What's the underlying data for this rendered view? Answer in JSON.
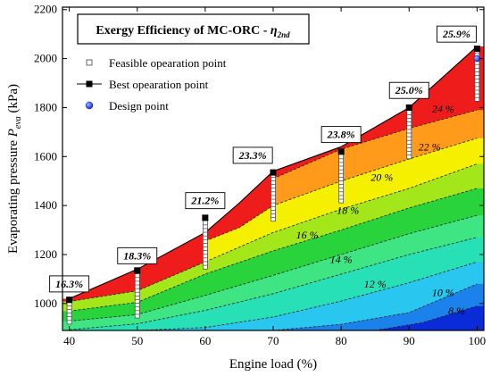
{
  "chart_data": {
    "type": "contour",
    "title": "Exergy Efficiency of MC-ORC - ",
    "title_symbol": "η",
    "title_subscript": "2nd",
    "xlabel": "Engine load (%)",
    "ylabel": "Evaporating pressure ",
    "ylabel_symbol": "P",
    "ylabel_subscript": "eva",
    "ylabel_unit": " (kPa)",
    "xlim": [
      39,
      101
    ],
    "ylim": [
      890,
      2210
    ],
    "x_ticks": [
      40,
      50,
      60,
      70,
      80,
      90,
      100
    ],
    "y_ticks": [
      1000,
      1200,
      1400,
      1600,
      1800,
      2000,
      2200
    ],
    "legend_position": "top-left",
    "legend": [
      {
        "label": "Feasible opearation point",
        "marker": "open-square"
      },
      {
        "label": "Best opearation point",
        "marker": "filled-square-line"
      },
      {
        "label": "Design point",
        "marker": "blue-circle"
      }
    ],
    "upper_boundary": {
      "x": [
        40,
        50,
        60,
        65,
        70,
        80,
        90,
        100
      ],
      "y": [
        1020,
        1140,
        1290,
        1410,
        1540,
        1640,
        1800,
        2050
      ]
    },
    "levels": [
      "8 %",
      "10 %",
      "12 %",
      "14 %",
      "16 %",
      "18 %",
      "20 %",
      "22 %",
      "24 %"
    ],
    "level_colors": [
      "#0a2bd8",
      "#1a82ea",
      "#29c6ef",
      "#27e0b6",
      "#3fe582",
      "#28d33c",
      "#a3e61a",
      "#f5ef00",
      "#ff9a1b",
      "#ef1c1c"
    ],
    "contours": [
      {
        "x": [
          100
        ],
        "y": [
          890
        ],
        "x2": [
          85,
          92,
          100
        ],
        "y2": [
          890,
          922,
          990
        ]
      },
      {
        "x": [
          70,
          80,
          90,
          100
        ],
        "y": [
          890,
          915,
          963,
          1080
        ]
      },
      {
        "x": [
          50,
          60,
          70,
          80,
          90,
          100
        ],
        "y": [
          890,
          902,
          945,
          1010,
          1085,
          1170
        ]
      },
      {
        "x": [
          40,
          50,
          60,
          70,
          80,
          90,
          100
        ],
        "y": [
          893,
          917,
          972,
          1040,
          1120,
          1200,
          1270
        ]
      },
      {
        "x": [
          40,
          50,
          60,
          70,
          80,
          90,
          100
        ],
        "y": [
          928,
          955,
          1033,
          1115,
          1200,
          1285,
          1360
        ]
      },
      {
        "x": [
          40,
          50,
          60,
          70,
          80,
          90,
          100
        ],
        "y": [
          969,
          1005,
          1120,
          1215,
          1300,
          1390,
          1470
        ]
      },
      {
        "x": [
          40,
          50,
          60,
          70,
          80,
          90,
          100
        ],
        "y": [
          1008,
          1052,
          1170,
          1290,
          1385,
          1470,
          1570
        ]
      },
      {
        "x": [
          60,
          65,
          70,
          80,
          90,
          100
        ],
        "y": [
          1255,
          1310,
          1400,
          1500,
          1590,
          1675
        ]
      },
      {
        "x": [
          70,
          80,
          90,
          100
        ],
        "y": [
          1510,
          1630,
          1715,
          1790
        ]
      }
    ],
    "contour_labels": [
      {
        "text": "8 %",
        "x": 97,
        "y": 955
      },
      {
        "text": "10 %",
        "x": 95,
        "y": 1030
      },
      {
        "text": "12 %",
        "x": 85,
        "y": 1065
      },
      {
        "text": "14 %",
        "x": 80,
        "y": 1165
      },
      {
        "text": "16 %",
        "x": 75,
        "y": 1265
      },
      {
        "text": "18 %",
        "x": 81,
        "y": 1365
      },
      {
        "text": "20 %",
        "x": 86,
        "y": 1500
      },
      {
        "text": "22 %",
        "x": 93,
        "y": 1625
      },
      {
        "text": "24 %",
        "x": 95,
        "y": 1780
      }
    ],
    "feasible_points": [
      {
        "x": 40,
        "y_min": 925,
        "y_max": 1010,
        "step": 15
      },
      {
        "x": 50,
        "y_min": 950,
        "y_max": 1130,
        "step": 15
      },
      {
        "x": 60,
        "y_min": 1150,
        "y_max": 1340,
        "step": 15
      },
      {
        "x": 70,
        "y_min": 1345,
        "y_max": 1525,
        "step": 15
      },
      {
        "x": 80,
        "y_min": 1420,
        "y_max": 1605,
        "step": 15
      },
      {
        "x": 90,
        "y_min": 1600,
        "y_max": 1790,
        "step": 15
      },
      {
        "x": 100,
        "y_min": 1835,
        "y_max": 2030,
        "step": 15
      }
    ],
    "best_points": {
      "x": [
        40,
        50,
        60,
        70,
        80,
        90,
        100
      ],
      "y": [
        1015,
        1135,
        1350,
        1535,
        1620,
        1800,
        2040
      ],
      "labels": [
        "16.3%",
        "18.3%",
        "21.2%",
        "23.3%",
        "23.8%",
        "25.0%",
        "25.9%"
      ],
      "label_offsets": [
        [
          0,
          1080
        ],
        [
          0,
          1195
        ],
        [
          0,
          1420
        ],
        [
          -3,
          1605
        ],
        [
          0,
          1690
        ],
        [
          0,
          1870
        ],
        [
          -3,
          2100
        ]
      ]
    },
    "design_point": {
      "x": 100,
      "y": 2000
    }
  }
}
